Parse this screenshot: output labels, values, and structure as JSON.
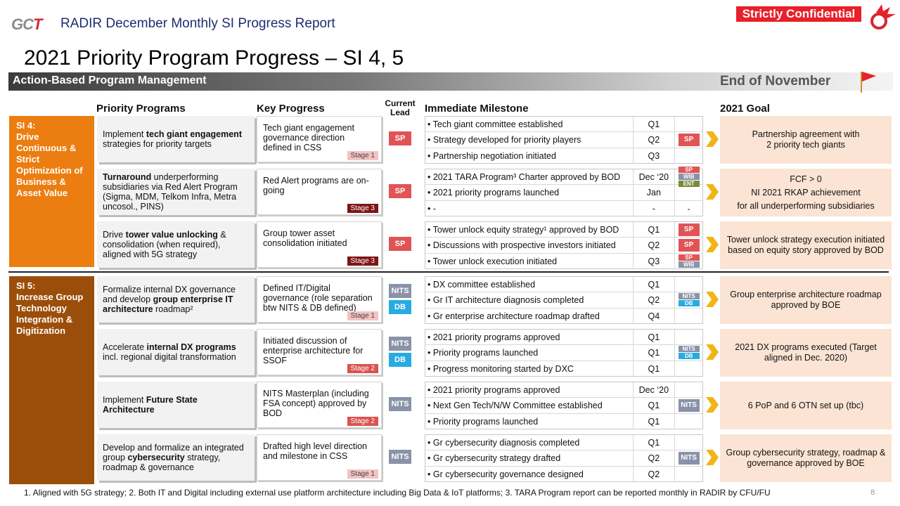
{
  "header": {
    "logo_text": "GCT",
    "report_title": "RADIR December Monthly SI Progress Report",
    "confidential": "Strictly Confidential"
  },
  "page_title": "2021 Priority Program Progress – SI 4, 5",
  "banner": {
    "label": "Action-Based Program Management",
    "date": "End of November"
  },
  "columns": {
    "priority": "Priority Programs",
    "progress": "Key Progress",
    "lead": "Current Lead",
    "milestone": "Immediate Milestone",
    "goal": "2021 Goal"
  },
  "si": [
    {
      "label": "SI 4:\nDrive Continuous & Strict Optimization of Business & Asset Value"
    },
    {
      "label": "SI 5:\nIncrease Group Technology Integration & Digitization"
    }
  ],
  "programs": [
    {
      "text": "Implement tech giant engagement strategies for priority targets",
      "progress": "Tech giant engagement governance direction defined in CSS",
      "stage": "Stage 1",
      "lead": [
        "SP"
      ],
      "milestones": [
        {
          "text": "• Tech giant committee established",
          "time": "Q1",
          "lead": []
        },
        {
          "text": "• Strategy developed for priority players",
          "time": "Q2",
          "lead": [
            "SP"
          ]
        },
        {
          "text": "• Partnership negotiation initiated",
          "time": "Q3",
          "lead": []
        }
      ],
      "goal": [
        "Partnership agreement with",
        "2 priority tech giants"
      ]
    },
    {
      "text": "Turnaround underperforming subsidiaries via Red Alert Program (Sigma, MDM, Telkom Infra, Metra uncosol., PINS)",
      "progress": "Red Alert programs are on-going",
      "stage": "Stage 3",
      "lead": [
        "SP"
      ],
      "milestones": [
        {
          "text": "• 2021 TARA Program³ Charter approved by BOD",
          "time": "Dec ‘20",
          "lead": [
            "SP",
            "WIB",
            "ENT"
          ]
        },
        {
          "text": "• 2021 priority programs launched",
          "time": "Jan",
          "lead": []
        },
        {
          "text": "• -",
          "time": "-",
          "lead": [
            "-"
          ]
        }
      ],
      "goal": [
        "FCF > 0",
        "NI 2021 RKAP achievement",
        "for all underperforming subsidiaries"
      ]
    },
    {
      "text": "Drive tower value unlocking & consolidation (when required), aligned with 5G strategy",
      "progress": "Group tower asset consolidation initiated",
      "stage": "Stage 3",
      "lead": [
        "SP"
      ],
      "milestones": [
        {
          "text": "• Tower unlock equity strategy¹ approved by BOD",
          "time": "Q1",
          "lead": [
            "SP"
          ]
        },
        {
          "text": "• Discussions with prospective investors initiated",
          "time": "Q2",
          "lead": [
            "SP"
          ]
        },
        {
          "text": "• Tower unlock execution initiated",
          "time": "Q3",
          "lead": [
            "SP",
            "WIB"
          ]
        }
      ],
      "goal": [
        "Tower unlock strategy execution initiated based on equity story approved by BOD"
      ]
    },
    {
      "text": "Formalize internal DX governance and develop group enterprise IT architecture roadmap²",
      "progress": "Defined IT/Digital governance (role separation btw NITS & DB defined)",
      "stage": "Stage 1",
      "lead": [
        "NITS",
        "DB"
      ],
      "milestones": [
        {
          "text": "• DX committee established",
          "time": "Q1",
          "lead": []
        },
        {
          "text": "• Gr IT architecture diagnosis completed",
          "time": "Q2",
          "lead": [
            "NITS",
            "DB"
          ]
        },
        {
          "text": "• Gr enterprise architecture roadmap drafted",
          "time": "Q4",
          "lead": []
        }
      ],
      "goal": [
        "Group enterprise architecture roadmap approved by BOE"
      ]
    },
    {
      "text": "Accelerate internal DX programs incl. regional digital transformation",
      "progress": "Initiated discussion of enterprise architecture for SSOF",
      "stage": "Stage 2",
      "lead": [
        "NITS",
        "DB"
      ],
      "milestones": [
        {
          "text": "• 2021 priority programs approved",
          "time": "Q1",
          "lead": []
        },
        {
          "text": "• Priority programs launched",
          "time": "Q1",
          "lead": [
            "NITS",
            "DB"
          ]
        },
        {
          "text": "• Progress monitoring started by DXC",
          "time": "Q1",
          "lead": []
        }
      ],
      "goal": [
        "2021 DX programs executed (Target aligned in Dec. 2020)"
      ]
    },
    {
      "text": "Implement Future State Architecture",
      "progress": "NITS Masterplan (including FSA concept) approved by BOD",
      "stage": "Stage 2",
      "lead": [
        "NITS"
      ],
      "milestones": [
        {
          "text": "• 2021 priority programs approved",
          "time": "Dec ‘20",
          "lead": []
        },
        {
          "text": "• Next Gen Tech/N/W Committee established",
          "time": "Q1",
          "lead": [
            "NITS"
          ]
        },
        {
          "text": "• Priority programs launched",
          "time": "Q1",
          "lead": []
        }
      ],
      "goal": [
        "6 PoP and 6 OTN set up (tbc)"
      ]
    },
    {
      "text": "Develop and formalize an integrated group cybersecurity strategy, roadmap & governance",
      "progress": "Drafted high level direction and milestone in CSS",
      "stage": "Stage 1",
      "lead": [
        "NITS"
      ],
      "milestones": [
        {
          "text": "• Gr cybersecurity diagnosis completed",
          "time": "Q1",
          "lead": []
        },
        {
          "text": "• Gr cybersecurity strategy drafted",
          "time": "Q2",
          "lead": [
            "NITS"
          ]
        },
        {
          "text": "• Gr cybersecurity governance designed",
          "time": "Q2",
          "lead": []
        }
      ],
      "goal": [
        "Group cybersecurity strategy, roadmap & governance approved by BOE"
      ]
    }
  ],
  "footnote": "1. Aligned with 5G strategy; 2. Both IT and Digital including external use platform architecture including Big Data & IoT platforms; 3. TARA Program report can be reported monthly in RADIR by CFU/FU",
  "page_number": "8",
  "colors": {
    "si4": "#ec7d10",
    "si5": "#9b4e0a",
    "sp": "#e05455",
    "nits": "#8992a8",
    "db": "#29abe2",
    "confidential": "#e8202a"
  }
}
